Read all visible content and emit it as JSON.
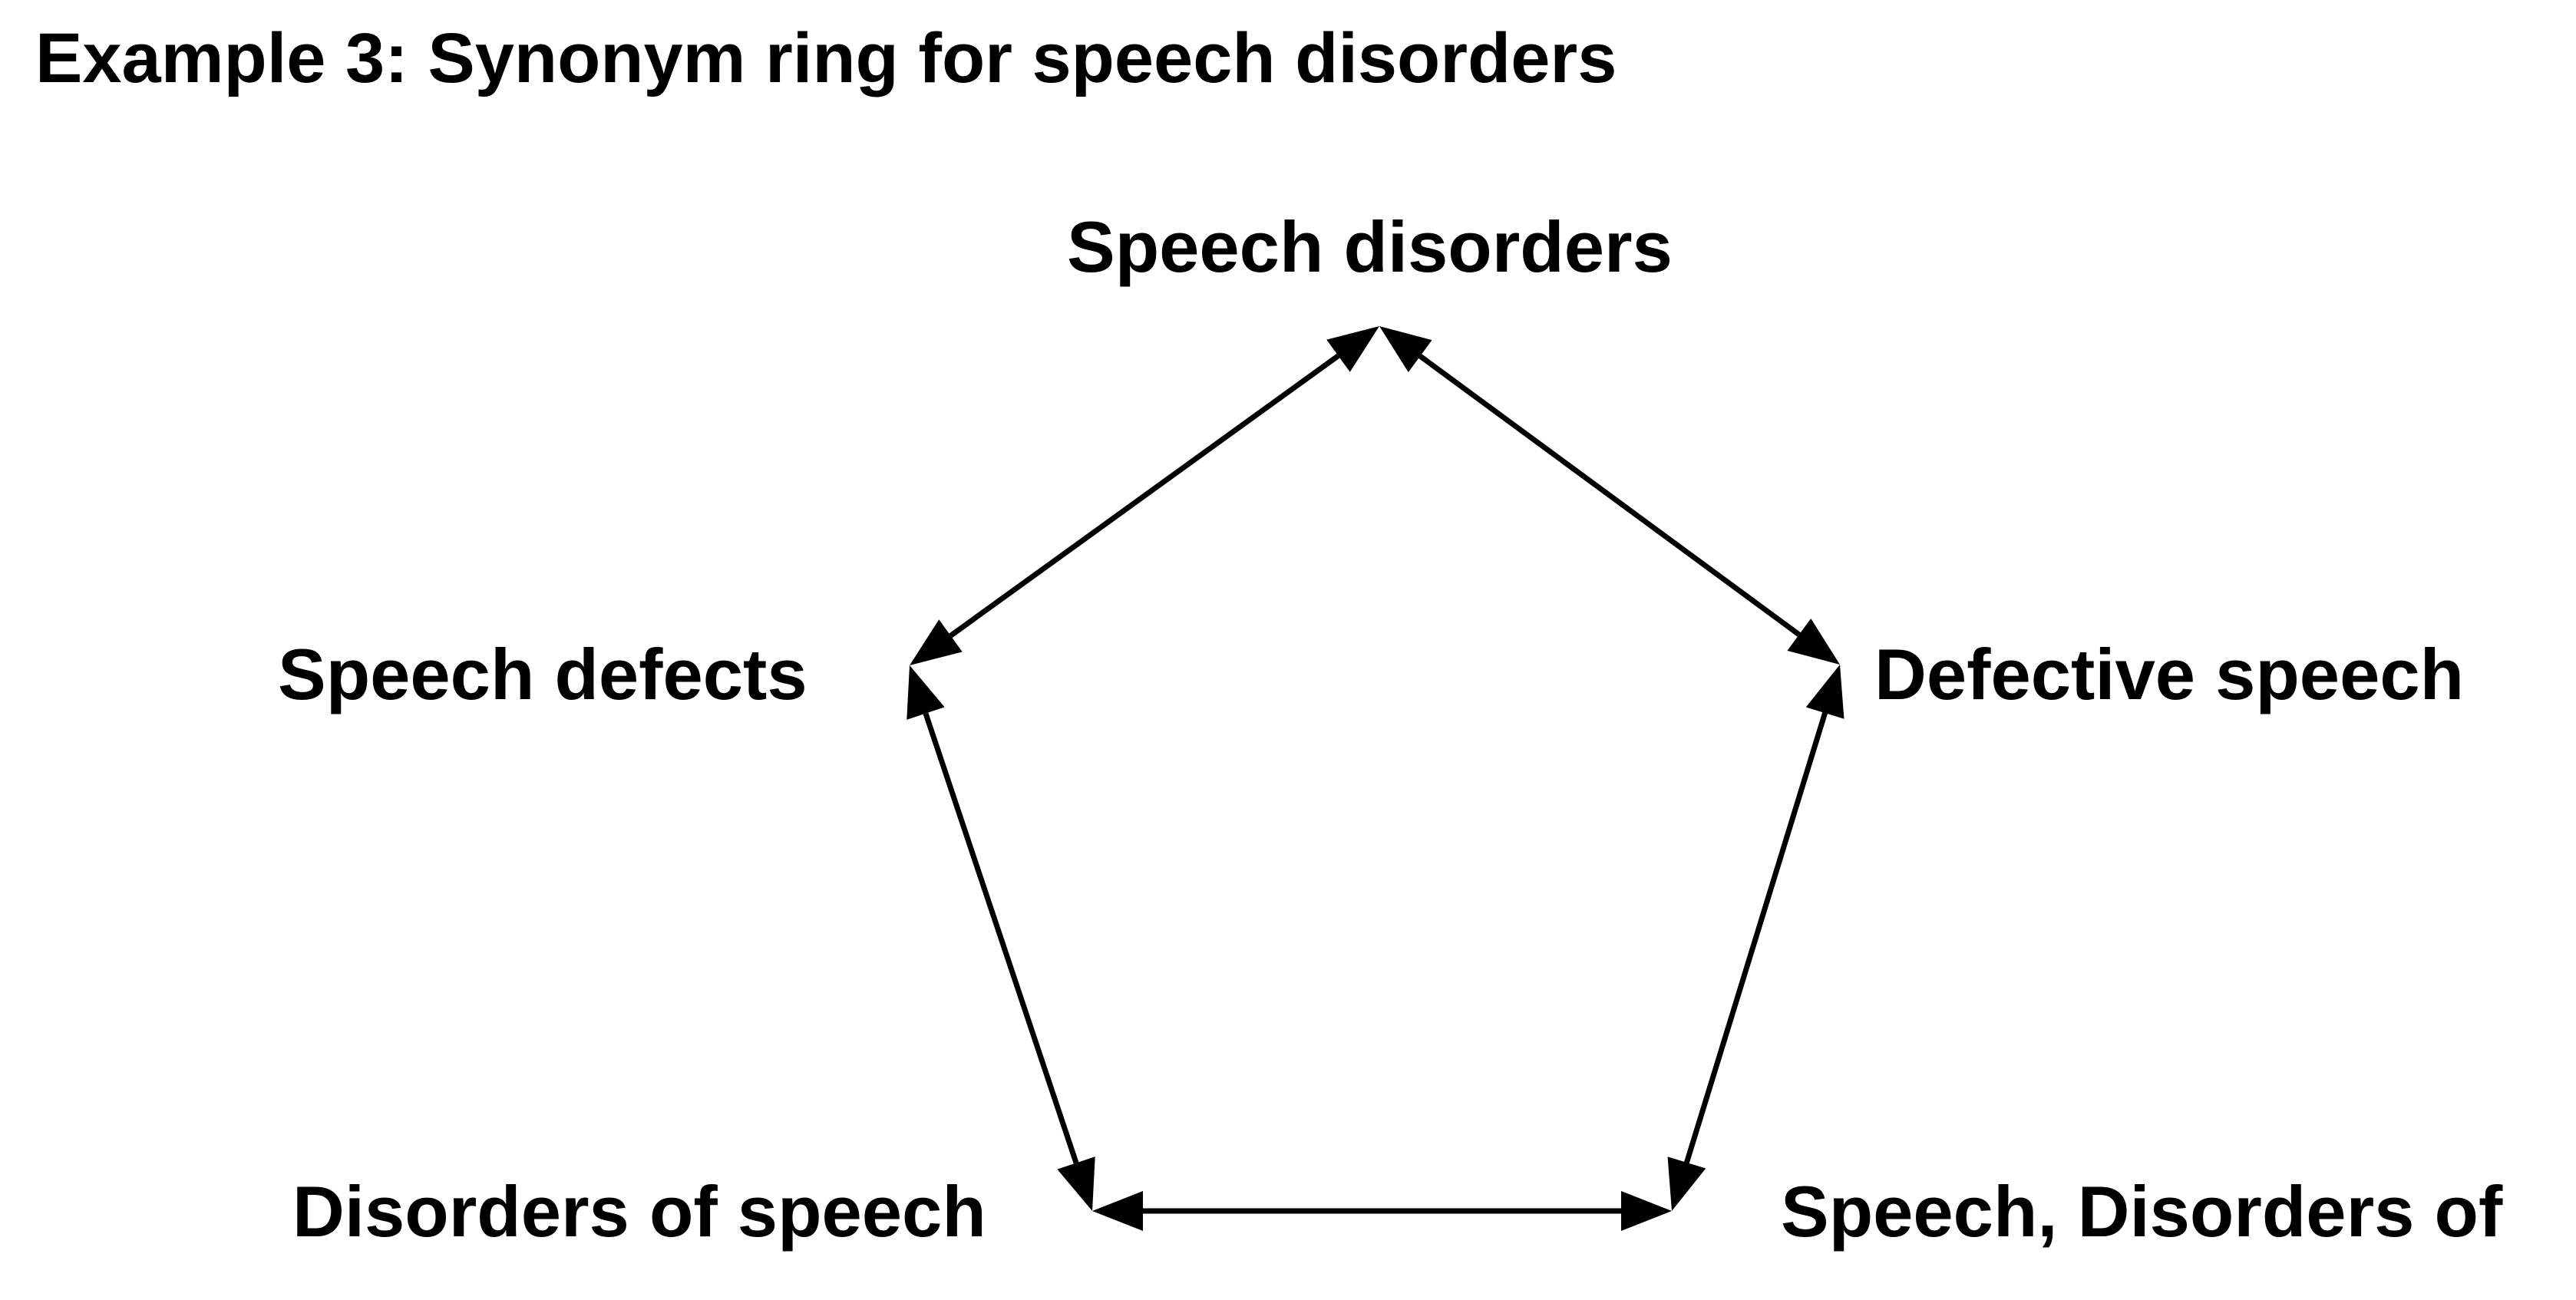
{
  "title": "Example 3: Synonym ring for speech disorders",
  "nodes": {
    "top": "Speech disorders",
    "left": "Speech defects",
    "right": "Defective speech",
    "bottom_left": "Disorders of speech",
    "bottom_right": "Speech, Disorders of"
  },
  "edges": [
    {
      "from": "top",
      "to": "left",
      "type": "bidirectional"
    },
    {
      "from": "top",
      "to": "right",
      "type": "bidirectional"
    },
    {
      "from": "left",
      "to": "bottom_left",
      "type": "bidirectional"
    },
    {
      "from": "right",
      "to": "bottom_right",
      "type": "bidirectional"
    },
    {
      "from": "bottom_left",
      "to": "bottom_right",
      "type": "bidirectional"
    }
  ],
  "colors": {
    "text": "#000000",
    "edge": "#000000",
    "background": "#ffffff"
  }
}
